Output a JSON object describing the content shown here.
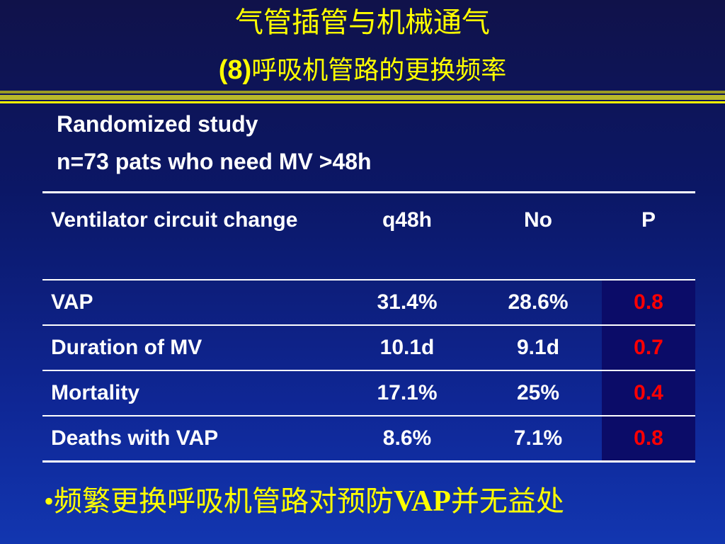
{
  "slide": {
    "title_line1": "气管插管与机械通气",
    "title_line2_prefix": "(8)",
    "title_line2_text": "呼吸机管路的更换频率",
    "subtitle1": "Randomized study",
    "subtitle2": "n=73 pats who need MV >48h",
    "colors": {
      "background": "#0b1766",
      "title": "#ffff00",
      "text": "#ffffff",
      "p_value": "#ff0000"
    }
  },
  "table": {
    "headers": [
      "Ventilator circuit change",
      "q48h",
      "No",
      "P"
    ],
    "rows": [
      {
        "label": "VAP",
        "q48h": "31.4%",
        "no": "28.6%",
        "p": "0.8"
      },
      {
        "label": "Duration of MV",
        "q48h": "10.1d",
        "no": "9.1d",
        "p": "0.7"
      },
      {
        "label": "Mortality",
        "q48h": "17.1%",
        "no": "25%",
        "p": "0.4"
      },
      {
        "label": "Deaths with VAP",
        "q48h": "8.6%",
        "no": "7.1%",
        "p": "0.8"
      }
    ]
  },
  "conclusion": {
    "bullet": "•",
    "text_before": "频繁更换呼吸机管路对预防",
    "text_en": "VAP",
    "text_after": "并无益处"
  }
}
